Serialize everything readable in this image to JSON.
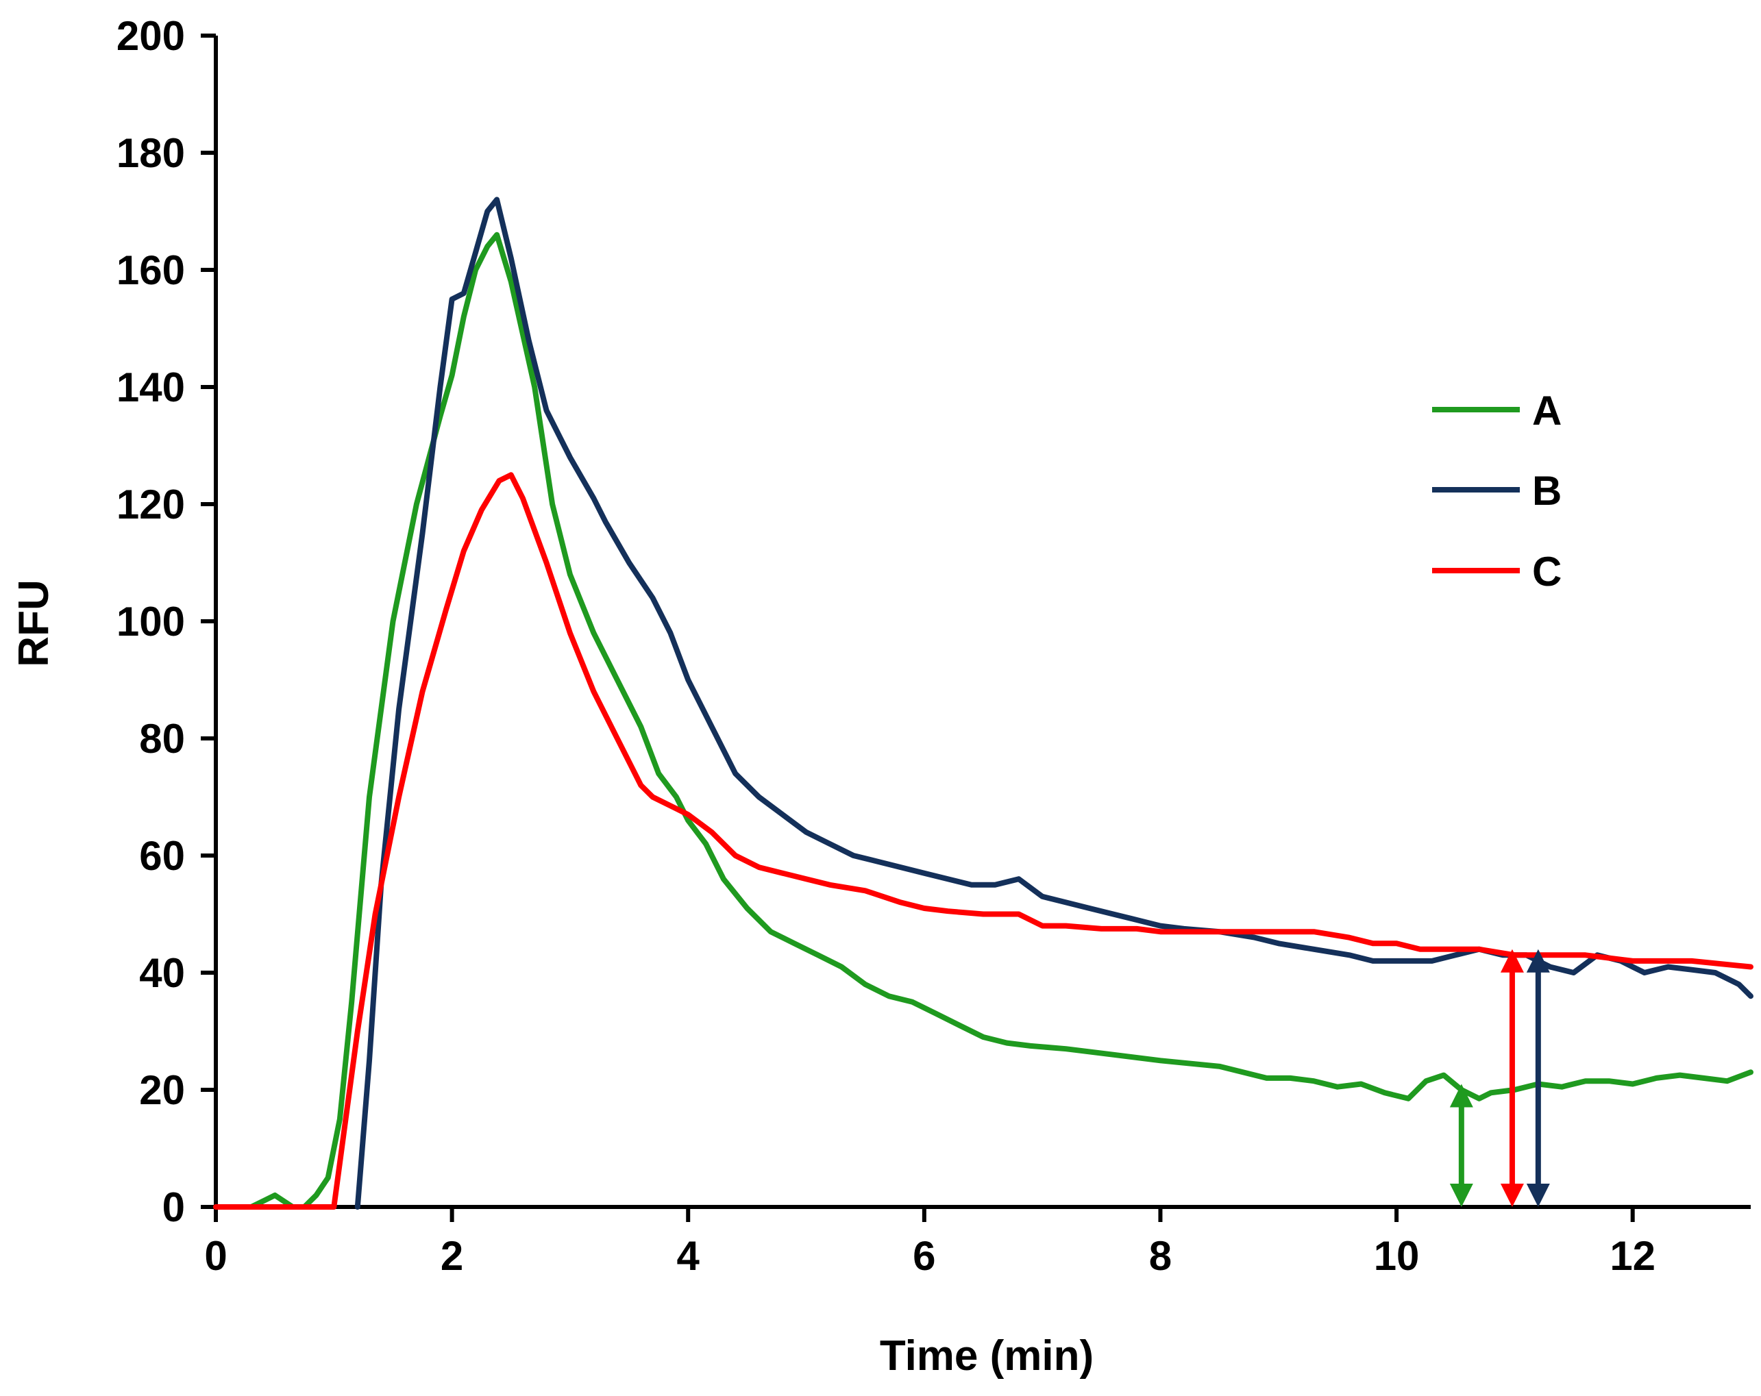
{
  "chart_data": {
    "type": "line",
    "title": "",
    "xlabel": "Time (min)",
    "ylabel": "RFU",
    "xlim": [
      0,
      13
    ],
    "ylim": [
      0,
      200
    ],
    "x_ticks": [
      0,
      2,
      4,
      6,
      8,
      10,
      12
    ],
    "x_tick_labels": [
      "0",
      "2",
      "4",
      "6",
      "8",
      "10",
      "12"
    ],
    "y_ticks": [
      0,
      20,
      40,
      60,
      80,
      100,
      120,
      140,
      160,
      180,
      200
    ],
    "y_tick_labels": [
      "0",
      "20",
      "40",
      "60",
      "80",
      "100",
      "120",
      "140",
      "160",
      "180",
      "200"
    ],
    "grid": false,
    "legend_position": "right",
    "series": [
      {
        "name": "A",
        "color": "#1f9a1f",
        "points": [
          [
            0,
            0
          ],
          [
            0.3,
            0
          ],
          [
            0.5,
            2
          ],
          [
            0.65,
            0
          ],
          [
            0.75,
            0
          ],
          [
            0.85,
            2
          ],
          [
            0.95,
            5
          ],
          [
            1.05,
            15
          ],
          [
            1.15,
            35
          ],
          [
            1.3,
            70
          ],
          [
            1.5,
            100
          ],
          [
            1.7,
            120
          ],
          [
            1.9,
            135
          ],
          [
            2.0,
            142
          ],
          [
            2.1,
            152
          ],
          [
            2.2,
            160
          ],
          [
            2.3,
            164
          ],
          [
            2.38,
            166
          ],
          [
            2.5,
            158
          ],
          [
            2.7,
            140
          ],
          [
            2.85,
            120
          ],
          [
            3.0,
            108
          ],
          [
            3.2,
            98
          ],
          [
            3.4,
            90
          ],
          [
            3.6,
            82
          ],
          [
            3.75,
            74
          ],
          [
            3.9,
            70
          ],
          [
            4.0,
            66
          ],
          [
            4.15,
            62
          ],
          [
            4.3,
            56
          ],
          [
            4.5,
            51
          ],
          [
            4.7,
            47
          ],
          [
            4.9,
            45
          ],
          [
            5.1,
            43
          ],
          [
            5.3,
            41
          ],
          [
            5.5,
            38
          ],
          [
            5.7,
            36
          ],
          [
            5.9,
            35
          ],
          [
            6.1,
            33
          ],
          [
            6.3,
            31
          ],
          [
            6.5,
            29
          ],
          [
            6.7,
            28
          ],
          [
            6.9,
            27.5
          ],
          [
            7.2,
            27
          ],
          [
            7.6,
            26
          ],
          [
            8.0,
            25
          ],
          [
            8.5,
            24
          ],
          [
            8.9,
            22
          ],
          [
            9.1,
            22
          ],
          [
            9.3,
            21.5
          ],
          [
            9.5,
            20.5
          ],
          [
            9.7,
            21
          ],
          [
            9.9,
            19.5
          ],
          [
            10.1,
            18.5
          ],
          [
            10.25,
            21.5
          ],
          [
            10.4,
            22.5
          ],
          [
            10.55,
            20
          ],
          [
            10.7,
            18.5
          ],
          [
            10.8,
            19.5
          ],
          [
            11.0,
            20
          ],
          [
            11.2,
            21
          ],
          [
            11.4,
            20.5
          ],
          [
            11.6,
            21.5
          ],
          [
            11.8,
            21.5
          ],
          [
            12.0,
            21
          ],
          [
            12.2,
            22
          ],
          [
            12.4,
            22.5
          ],
          [
            12.6,
            22
          ],
          [
            12.8,
            21.5
          ],
          [
            13.0,
            23
          ]
        ]
      },
      {
        "name": "B",
        "color": "#14305a",
        "points": [
          [
            1.2,
            0
          ],
          [
            1.3,
            25
          ],
          [
            1.4,
            55
          ],
          [
            1.55,
            85
          ],
          [
            1.75,
            115
          ],
          [
            1.9,
            140
          ],
          [
            2.0,
            155
          ],
          [
            2.1,
            156
          ],
          [
            2.2,
            163
          ],
          [
            2.3,
            170
          ],
          [
            2.38,
            172
          ],
          [
            2.5,
            162
          ],
          [
            2.65,
            148
          ],
          [
            2.8,
            136
          ],
          [
            3.0,
            128
          ],
          [
            3.2,
            121
          ],
          [
            3.3,
            117
          ],
          [
            3.5,
            110
          ],
          [
            3.7,
            104
          ],
          [
            3.85,
            98
          ],
          [
            4.0,
            90
          ],
          [
            4.2,
            82
          ],
          [
            4.4,
            74
          ],
          [
            4.6,
            70
          ],
          [
            4.8,
            67
          ],
          [
            5.0,
            64
          ],
          [
            5.2,
            62
          ],
          [
            5.4,
            60
          ],
          [
            5.6,
            59
          ],
          [
            5.8,
            58
          ],
          [
            6.0,
            57
          ],
          [
            6.2,
            56
          ],
          [
            6.4,
            55
          ],
          [
            6.6,
            55
          ],
          [
            6.8,
            56
          ],
          [
            7.0,
            53
          ],
          [
            7.2,
            52
          ],
          [
            7.4,
            51
          ],
          [
            7.6,
            50
          ],
          [
            7.8,
            49
          ],
          [
            8.0,
            48
          ],
          [
            8.2,
            47.5
          ],
          [
            8.5,
            47
          ],
          [
            8.8,
            46
          ],
          [
            9.0,
            45
          ],
          [
            9.3,
            44
          ],
          [
            9.6,
            43
          ],
          [
            9.8,
            42
          ],
          [
            10.0,
            42
          ],
          [
            10.3,
            42
          ],
          [
            10.5,
            43
          ],
          [
            10.7,
            44
          ],
          [
            10.9,
            43
          ],
          [
            11.1,
            43
          ],
          [
            11.3,
            41
          ],
          [
            11.5,
            40
          ],
          [
            11.7,
            43
          ],
          [
            11.9,
            42
          ],
          [
            12.0,
            41
          ],
          [
            12.1,
            40
          ],
          [
            12.3,
            41
          ],
          [
            12.5,
            40.5
          ],
          [
            12.7,
            40
          ],
          [
            12.9,
            38
          ],
          [
            13.0,
            36
          ]
        ]
      },
      {
        "name": "C",
        "color": "#ff0000",
        "points": [
          [
            0,
            0
          ],
          [
            0.8,
            0
          ],
          [
            1.0,
            0
          ],
          [
            1.1,
            15
          ],
          [
            1.2,
            30
          ],
          [
            1.35,
            50
          ],
          [
            1.55,
            70
          ],
          [
            1.75,
            88
          ],
          [
            1.95,
            102
          ],
          [
            2.1,
            112
          ],
          [
            2.25,
            119
          ],
          [
            2.4,
            124
          ],
          [
            2.5,
            125
          ],
          [
            2.6,
            121
          ],
          [
            2.8,
            110
          ],
          [
            3.0,
            98
          ],
          [
            3.2,
            88
          ],
          [
            3.4,
            80
          ],
          [
            3.6,
            72
          ],
          [
            3.7,
            70
          ],
          [
            3.9,
            68
          ],
          [
            4.0,
            67
          ],
          [
            4.2,
            64
          ],
          [
            4.4,
            60
          ],
          [
            4.6,
            58
          ],
          [
            4.8,
            57
          ],
          [
            5.0,
            56
          ],
          [
            5.2,
            55
          ],
          [
            5.5,
            54
          ],
          [
            5.8,
            52
          ],
          [
            6.0,
            51
          ],
          [
            6.2,
            50.5
          ],
          [
            6.5,
            50
          ],
          [
            6.8,
            50
          ],
          [
            7.0,
            48
          ],
          [
            7.2,
            48
          ],
          [
            7.5,
            47.5
          ],
          [
            7.8,
            47.5
          ],
          [
            8.0,
            47
          ],
          [
            8.3,
            47
          ],
          [
            8.6,
            47
          ],
          [
            9.0,
            47
          ],
          [
            9.3,
            47
          ],
          [
            9.6,
            46
          ],
          [
            9.8,
            45
          ],
          [
            10.0,
            45
          ],
          [
            10.2,
            44
          ],
          [
            10.4,
            44
          ],
          [
            10.7,
            44
          ],
          [
            11.0,
            43
          ],
          [
            11.3,
            43
          ],
          [
            11.6,
            43
          ],
          [
            12.0,
            42
          ],
          [
            12.5,
            42
          ],
          [
            13.0,
            41
          ]
        ]
      }
    ],
    "annotations": [
      {
        "type": "double-arrow",
        "series": "A",
        "x": 10.55,
        "y_from": 0,
        "y_to": 21,
        "color": "#1f9a1f"
      },
      {
        "type": "double-arrow",
        "series": "C",
        "x": 10.98,
        "y_from": 0,
        "y_to": 44,
        "color": "#ff0000"
      },
      {
        "type": "double-arrow",
        "series": "B",
        "x": 11.2,
        "y_from": 0,
        "y_to": 44,
        "color": "#14305a"
      }
    ]
  }
}
